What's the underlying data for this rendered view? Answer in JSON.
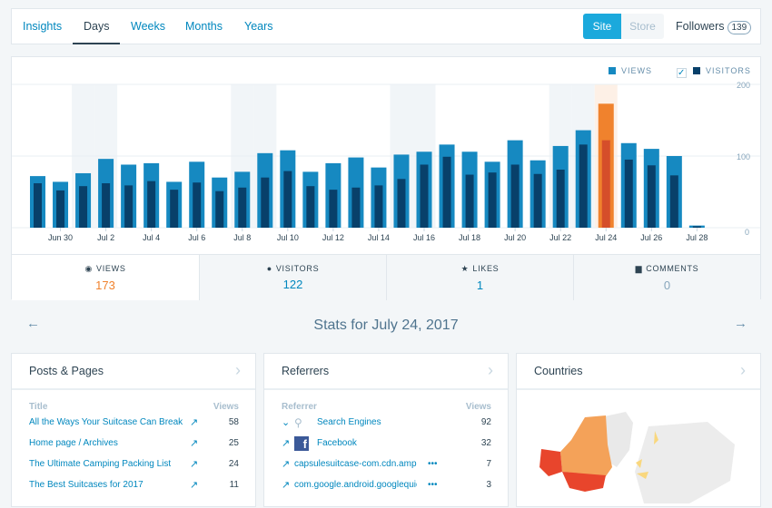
{
  "nav": {
    "tabs": [
      {
        "label": "Insights"
      },
      {
        "label": "Days"
      },
      {
        "label": "Weeks"
      },
      {
        "label": "Months"
      },
      {
        "label": "Years"
      }
    ],
    "active": "Days",
    "site": "Site",
    "store": "Store",
    "followers": "Followers",
    "followers_count": "139"
  },
  "colors": {
    "views": "#1689c1",
    "visitors": "#08406a",
    "selected_views": "#f0822d",
    "selected_visitors": "#d54e2a",
    "weekend": "#f1f5f8"
  },
  "legend": {
    "views": "VIEWS",
    "visitors": "VISITORS",
    "visitors_checked": true
  },
  "chart_data": {
    "type": "bar",
    "categories": [
      "Jun 29",
      "Jun 30",
      "Jul 1",
      "Jul 2",
      "Jul 3",
      "Jul 4",
      "Jul 5",
      "Jul 6",
      "Jul 7",
      "Jul 8",
      "Jul 9",
      "Jul 10",
      "Jul 11",
      "Jul 12",
      "Jul 13",
      "Jul 14",
      "Jul 15",
      "Jul 16",
      "Jul 17",
      "Jul 18",
      "Jul 19",
      "Jul 20",
      "Jul 21",
      "Jul 22",
      "Jul 23",
      "Jul 24",
      "Jul 25",
      "Jul 26",
      "Jul 27",
      "Jul 28"
    ],
    "tick_labels": [
      "Jun 30",
      "Jul 2",
      "Jul 4",
      "Jul 6",
      "Jul 8",
      "Jul 10",
      "Jul 12",
      "Jul 14",
      "Jul 16",
      "Jul 18",
      "Jul 20",
      "Jul 22",
      "Jul 24",
      "Jul 26",
      "Jul 28"
    ],
    "series": [
      {
        "name": "VIEWS",
        "values": [
          72,
          64,
          76,
          96,
          88,
          90,
          64,
          92,
          70,
          78,
          104,
          108,
          78,
          90,
          98,
          84,
          102,
          106,
          116,
          106,
          92,
          122,
          94,
          114,
          136,
          173,
          118,
          110,
          100,
          3
        ]
      },
      {
        "name": "VISITORS",
        "values": [
          62,
          52,
          58,
          62,
          59,
          65,
          53,
          63,
          51,
          56,
          70,
          79,
          58,
          53,
          56,
          59,
          68,
          88,
          99,
          74,
          77,
          88,
          75,
          81,
          116,
          122,
          95,
          87,
          73,
          2
        ]
      }
    ],
    "selected": "Jul 24",
    "weekends": [
      "Jul 1",
      "Jul 2",
      "Jul 8",
      "Jul 9",
      "Jul 15",
      "Jul 16",
      "Jul 22",
      "Jul 23"
    ],
    "yticks": [
      "200",
      "100",
      "0"
    ],
    "ylim": [
      0,
      200
    ],
    "grid": true,
    "legend": "top-right"
  },
  "summary": [
    {
      "icon": "eye-icon",
      "label": "VIEWS",
      "value": "173",
      "color": "#f0822d"
    },
    {
      "icon": "person-icon",
      "label": "VISITORS",
      "value": "122",
      "color": "#0087be"
    },
    {
      "icon": "star-icon",
      "label": "LIKES",
      "value": "1",
      "color": "#0087be"
    },
    {
      "icon": "comment-icon",
      "label": "COMMENTS",
      "value": "0",
      "color": "#87a6bc"
    }
  ],
  "date_title": "Stats for July 24, 2017",
  "posts": {
    "title": "Posts & Pages",
    "col1": "Title",
    "col2": "Views",
    "rows": [
      {
        "t": "All the Ways Your Suitcase Can Break",
        "v": "58"
      },
      {
        "t": "Home page / Archives",
        "v": "25"
      },
      {
        "t": "The Ultimate Camping Packing List",
        "v": "24"
      },
      {
        "t": "The Best Suitcases for 2017",
        "v": "11"
      }
    ]
  },
  "referrers": {
    "title": "Referrers",
    "col1": "Referrer",
    "col2": "Views",
    "rows": [
      {
        "t": "Search Engines",
        "v": "92"
      },
      {
        "t": "Facebook",
        "v": "32"
      },
      {
        "t": "capsulesuitcase-com.cdn.ampproject.org",
        "v": "7"
      },
      {
        "t": "com.google.android.googlequicksearchbox",
        "v": "3"
      }
    ]
  },
  "countries": {
    "title": "Countries"
  }
}
